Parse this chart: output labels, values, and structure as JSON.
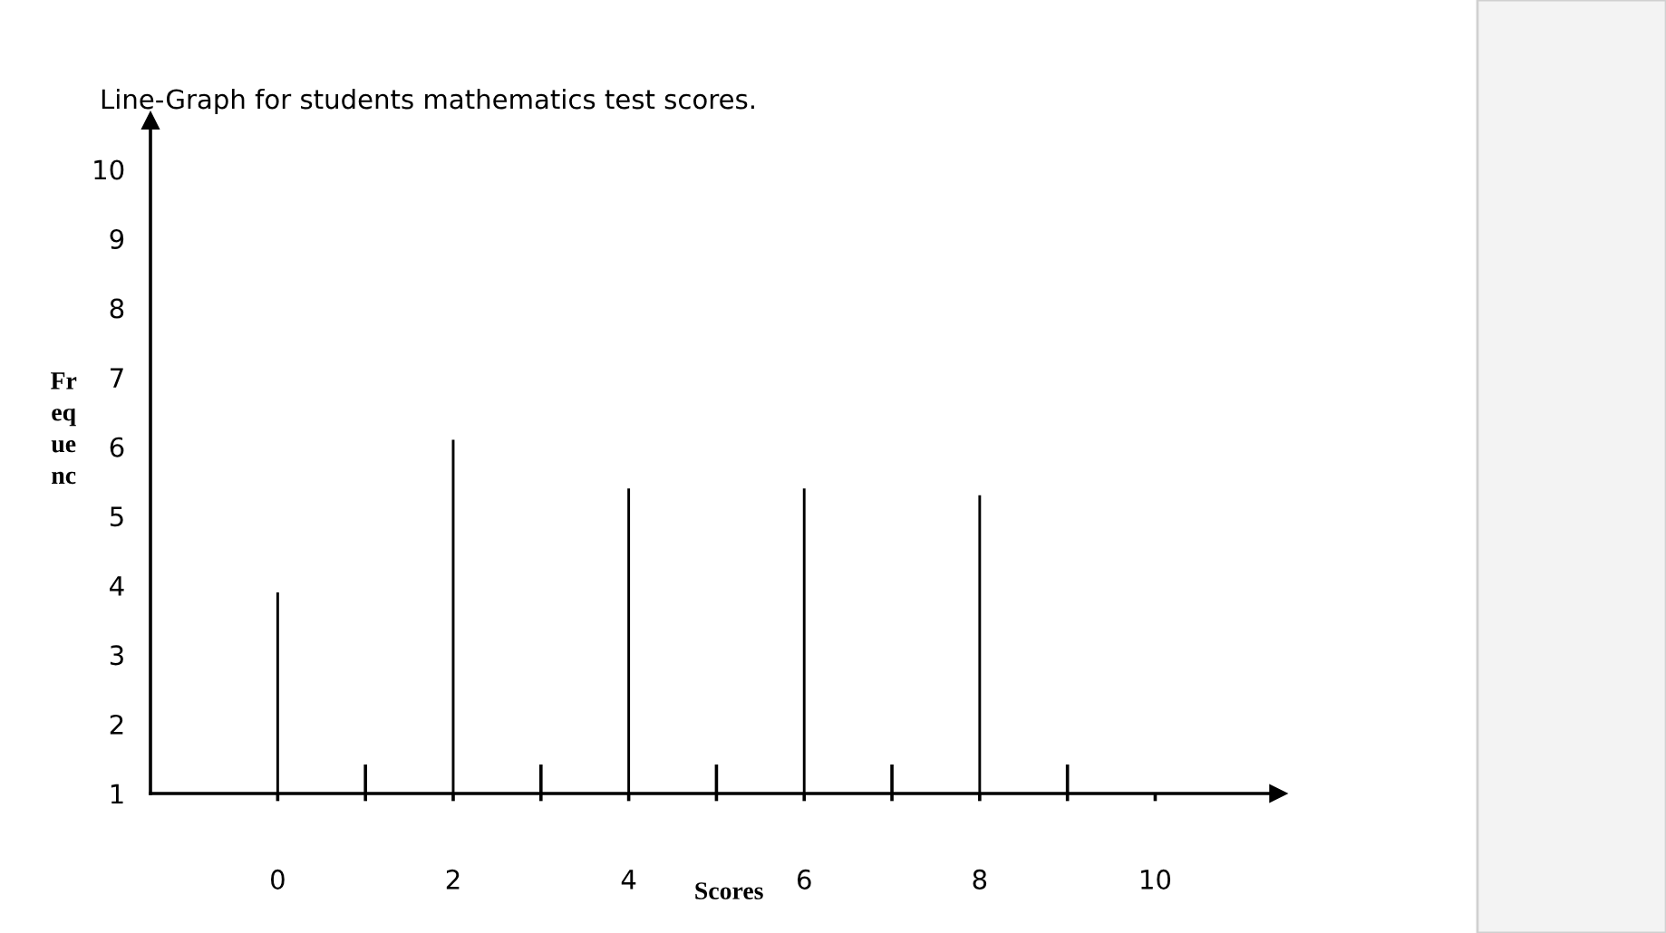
{
  "chart_data": {
    "type": "bar",
    "title": "Line-Graph for students mathematics test scores.",
    "xlabel": "Scores",
    "ylabel": "Fr\neq\nue\nnc",
    "x": [
      0,
      2,
      4,
      6,
      8
    ],
    "values": [
      3.9,
      6.1,
      5.4,
      5.4,
      5.3
    ],
    "color": "#000000",
    "xlim": [
      -1.45,
      11.4
    ],
    "ylim": [
      1,
      10.7
    ],
    "xticks": [
      0,
      {
        "value": 1,
        "label": null
      },
      2,
      {
        "value": 3,
        "label": null
      },
      4,
      {
        "value": 5,
        "label": null
      },
      6,
      {
        "value": 7,
        "label": null
      },
      8,
      {
        "value": 9,
        "label": null
      },
      10
    ],
    "yticks": [
      1,
      2,
      3,
      4,
      5,
      6,
      7,
      8,
      9,
      10
    ],
    "grid": false
  }
}
